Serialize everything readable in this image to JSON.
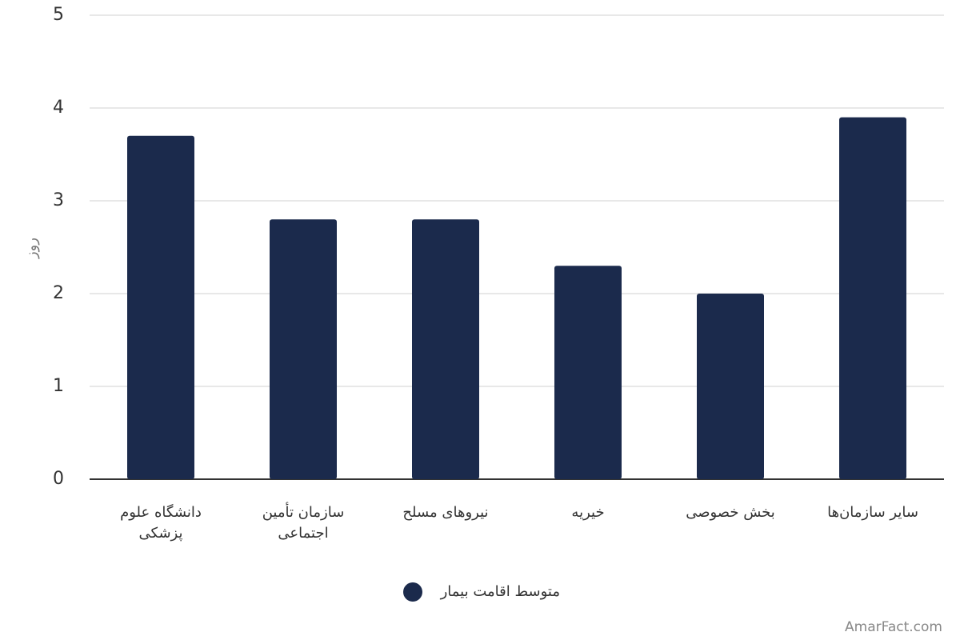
{
  "chart_data": {
    "type": "bar",
    "y_label": "روز",
    "categories": [
      "دانشگاه علوم پزشکی",
      "سازمان تأمین اجتماعی",
      "نیروهای مسلح",
      "خیریه",
      "بخش خصوصی",
      "سایر سازمان‌ها"
    ],
    "series": [
      {
        "name": "متوسط اقامت بیمار",
        "color": "#1b2a4c",
        "values": [
          3.7,
          2.8,
          2.8,
          2.3,
          2.0,
          3.9
        ]
      }
    ],
    "ylim": [
      0,
      5
    ],
    "yticks": [
      0,
      1,
      2,
      3,
      4,
      5
    ],
    "grid": true,
    "source": "AmarFact.com"
  }
}
